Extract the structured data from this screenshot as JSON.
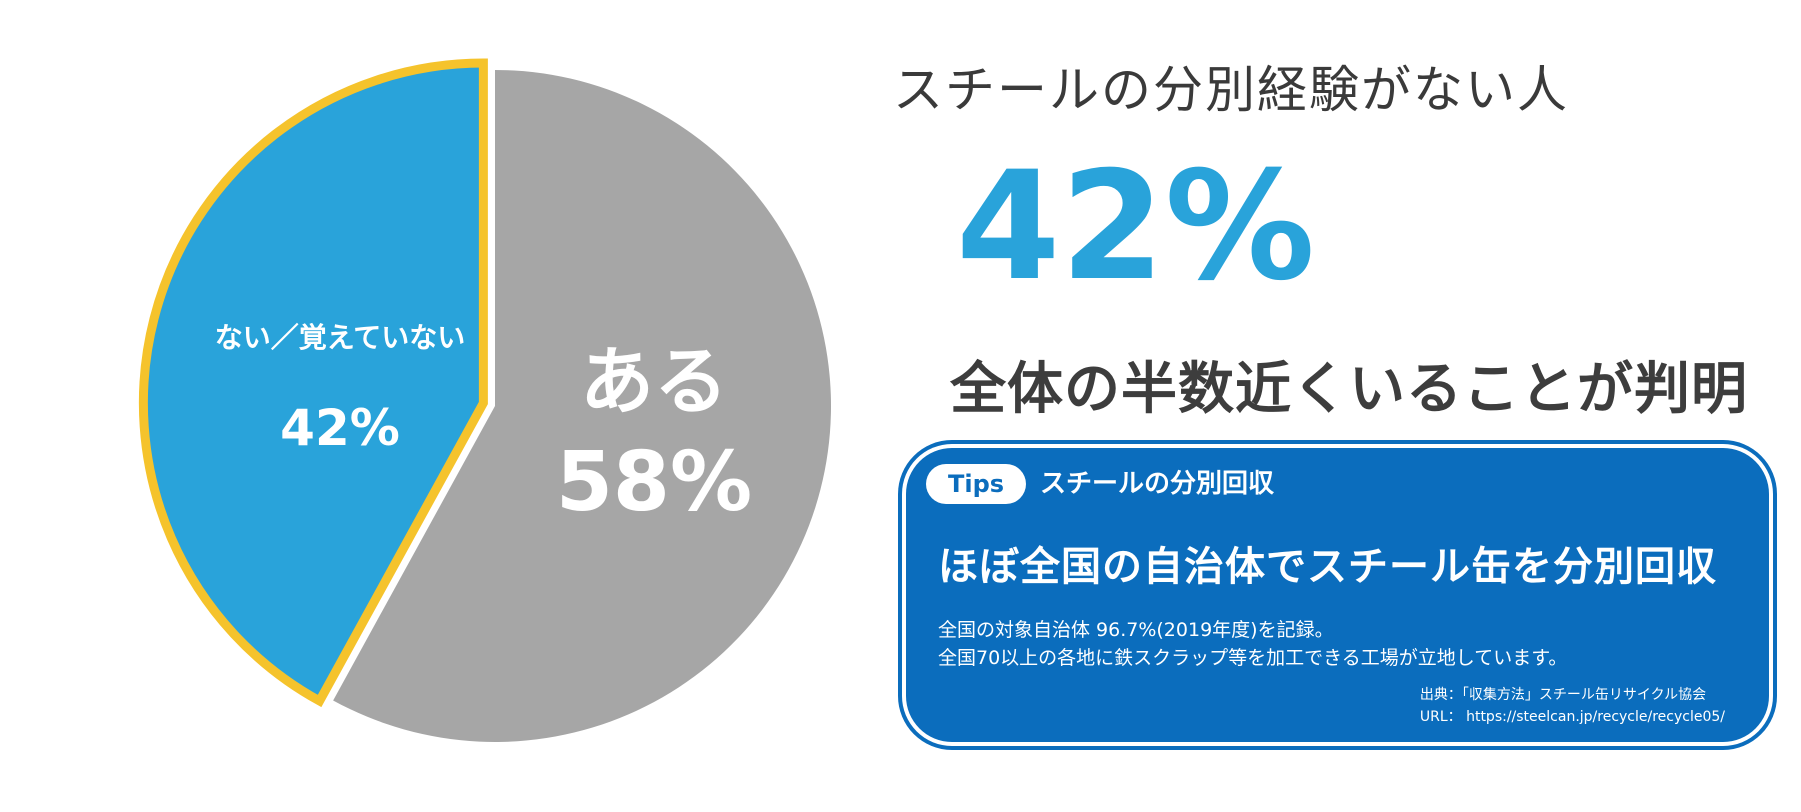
{
  "chart_data": {
    "type": "pie",
    "slices": [
      {
        "label": "ない／覚えていない",
        "value": 42,
        "value_label": "42%",
        "color": "#29a3da",
        "outline": "#f5c32c"
      },
      {
        "label": "ある",
        "value": 58,
        "value_label": "58%",
        "color": "#a6a6a6"
      }
    ]
  },
  "headline": "スチールの分別経験がない人",
  "big_percent": "42%",
  "subhead": "全体の半数近くいることが判明",
  "tips": {
    "badge": "Tips",
    "title": "スチールの分別回収",
    "heading": "ほぼ全国の自治体でスチール缶を分別回収",
    "body_lines": [
      "全国の対象自治体 96.7%(2019年度)を記録。",
      "全国70以上の各地に鉄スクラップ等を加工できる工場が立地しています。"
    ],
    "source": "出典：「収集方法」スチール缶リサイクル協会",
    "url": "URL： https://steelcan.jp/recycle/recycle05/"
  },
  "colors": {
    "accent_blue": "#29a3da",
    "card_blue": "#0b6dbd",
    "gray_slice": "#a6a6a6",
    "yellow_outline": "#f5c32c"
  }
}
